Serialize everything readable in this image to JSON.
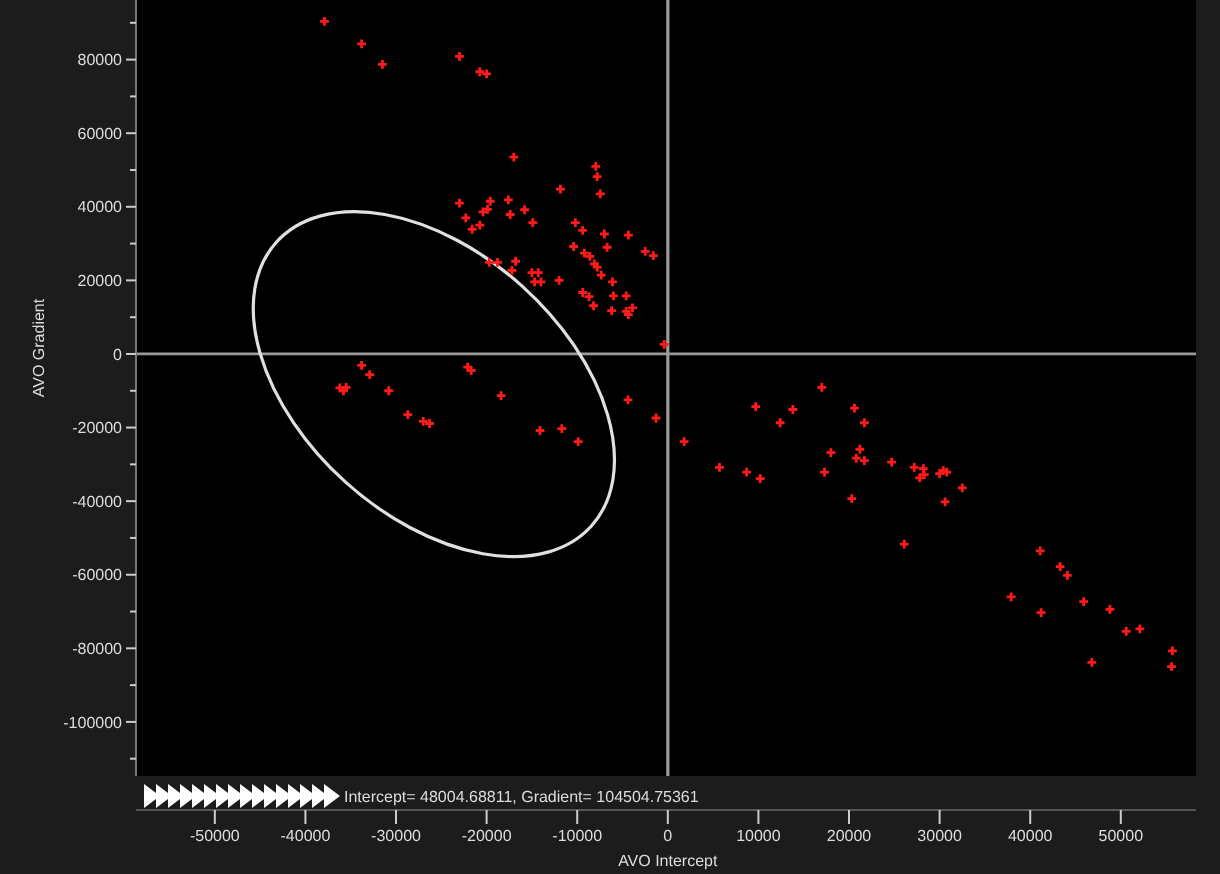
{
  "chart_data": {
    "type": "scatter",
    "xlabel": "AVO Intercept",
    "ylabel": "AVO Gradient",
    "marker": "cross",
    "grid": false,
    "xlim": [
      -58700,
      58300
    ],
    "ylim": [
      -114700,
      96200
    ],
    "xticks": [
      -50000,
      -40000,
      -30000,
      -20000,
      -10000,
      0,
      10000,
      20000,
      30000,
      40000,
      50000
    ],
    "yticks": [
      -100000,
      -80000,
      -60000,
      -40000,
      -20000,
      0,
      20000,
      40000,
      60000,
      80000,
      {
        "value": -110000,
        "label": null
      },
      {
        "value": -90000,
        "label": null
      },
      {
        "value": -70000,
        "label": null
      },
      {
        "value": -50000,
        "label": null
      },
      {
        "value": -30000,
        "label": null
      },
      {
        "value": -10000,
        "label": null
      },
      {
        "value": 10000,
        "label": null
      },
      {
        "value": 30000,
        "label": null
      },
      {
        "value": 50000,
        "label": null
      },
      {
        "value": 70000,
        "label": null
      },
      {
        "value": 90000,
        "label": null
      }
    ],
    "ref_lines": [
      {
        "axis": "x",
        "value": 0,
        "color": "#9a9a9a"
      },
      {
        "axis": "y",
        "value": 0,
        "color": "#9a9a9a"
      }
    ],
    "annotations": [
      "Intercept= 48004.68811, Gradient= 104504.75361"
    ],
    "series": [
      {
        "color": "#ff1a1a",
        "x": [
          -37900,
          -33800,
          -31500,
          -23000,
          -20750,
          -20000,
          -17000,
          -7950,
          -7800,
          -7450,
          -11850,
          -23000,
          -22300,
          -21600,
          -20750,
          -20400,
          -19900,
          -19600,
          -17600,
          -17400,
          -15800,
          -14900,
          -10200,
          -9400,
          -7000,
          -4350,
          -10400,
          -9200,
          -8600,
          -8100,
          -7800,
          -6700,
          -7350,
          -6100,
          -2500,
          -1600,
          -19700,
          -18800,
          -16800,
          -17200,
          -15000,
          -14300,
          -14700,
          -14000,
          -12000,
          -9400,
          -8700,
          -8200,
          -6000,
          -4600,
          -6200,
          -4600,
          -4350,
          -3900,
          -400,
          -33800,
          -32900,
          -36200,
          -35800,
          -35500,
          -30800,
          -28700,
          -27000,
          -26300,
          -22100,
          -21700,
          -18400,
          -14100,
          -11700,
          -9900,
          -4400,
          -1300,
          1800,
          5700,
          8700,
          10200,
          9700,
          12400,
          13800,
          17000,
          20600,
          21700,
          18000,
          17300,
          21200,
          20800,
          21700,
          20300,
          24700,
          27200,
          28200,
          27800,
          28300,
          30000,
          30400,
          30800,
          32500,
          30600,
          26100,
          41100,
          43300,
          44100,
          37900,
          41200,
          45900,
          48800,
          50600,
          52100,
          46800,
          55700,
          55600
        ],
        "values": [
          90400,
          84300,
          78700,
          80900,
          76700,
          76100,
          53500,
          51000,
          48200,
          43500,
          44800,
          41000,
          37000,
          33900,
          35000,
          38600,
          39300,
          41500,
          41900,
          37900,
          39200,
          35700,
          35700,
          33600,
          32600,
          32300,
          29200,
          27400,
          26500,
          24500,
          23600,
          29000,
          21400,
          19600,
          27900,
          26700,
          24900,
          24900,
          25200,
          22700,
          22100,
          22100,
          19600,
          19600,
          20000,
          16700,
          15600,
          13100,
          15800,
          15800,
          11800,
          11600,
          10700,
          12500,
          2600,
          -3100,
          -5600,
          -9200,
          -10000,
          -9100,
          -10000,
          -16500,
          -18300,
          -18900,
          -3600,
          -4500,
          -11300,
          -20800,
          -20300,
          -23800,
          -12500,
          -17400,
          -23800,
          -30800,
          -32100,
          -33900,
          -14300,
          -18700,
          -15100,
          -9100,
          -14700,
          -18700,
          -26800,
          -32100,
          -25900,
          -28300,
          -29000,
          -39300,
          -29400,
          -30800,
          -31200,
          -33700,
          -32800,
          -32500,
          -31700,
          -32100,
          -36400,
          -40200,
          -51700,
          -53500,
          -57800,
          -60200,
          -66000,
          -70300,
          -67300,
          -69400,
          -75400,
          -74700,
          -83800,
          -80700,
          -85000
        ]
      }
    ]
  }
}
